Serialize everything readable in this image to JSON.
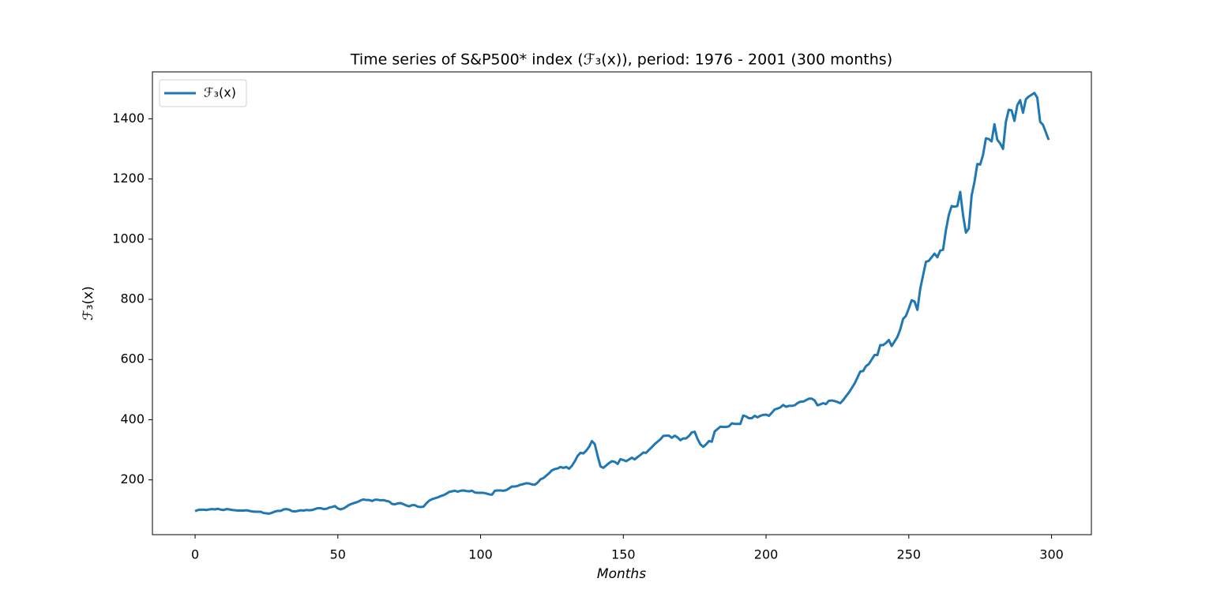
{
  "chart_data": {
    "type": "line",
    "title": "Time series of S&P500* index (ℱ₃(x)), period: 1976 - 2001 (300 months)",
    "xlabel": "Months",
    "ylabel": "ℱ₃(x)",
    "legend": "upper left",
    "xlim": [
      -14.95,
      313.95
    ],
    "xticks": [
      0,
      50,
      100,
      150,
      200,
      250,
      300
    ],
    "ylim": [
      18,
      1556
    ],
    "yticks": [
      200,
      400,
      600,
      800,
      1000,
      1200,
      1400
    ],
    "x": [
      0,
      1,
      2,
      3,
      4,
      5,
      6,
      7,
      8,
      9,
      10,
      11,
      12,
      13,
      14,
      15,
      16,
      17,
      18,
      19,
      20,
      21,
      22,
      23,
      24,
      25,
      26,
      27,
      28,
      29,
      30,
      31,
      32,
      33,
      34,
      35,
      36,
      37,
      38,
      39,
      40,
      41,
      42,
      43,
      44,
      45,
      46,
      47,
      48,
      49,
      50,
      51,
      52,
      53,
      54,
      55,
      56,
      57,
      58,
      59,
      60,
      61,
      62,
      63,
      64,
      65,
      66,
      67,
      68,
      69,
      70,
      71,
      72,
      73,
      74,
      75,
      76,
      77,
      78,
      79,
      80,
      81,
      82,
      83,
      84,
      85,
      86,
      87,
      88,
      89,
      90,
      91,
      92,
      93,
      94,
      95,
      96,
      97,
      98,
      99,
      100,
      101,
      102,
      103,
      104,
      105,
      106,
      107,
      108,
      109,
      110,
      111,
      112,
      113,
      114,
      115,
      116,
      117,
      118,
      119,
      120,
      121,
      122,
      123,
      124,
      125,
      126,
      127,
      128,
      129,
      130,
      131,
      132,
      133,
      134,
      135,
      136,
      137,
      138,
      139,
      140,
      141,
      142,
      143,
      144,
      145,
      146,
      147,
      148,
      149,
      150,
      151,
      152,
      153,
      154,
      155,
      156,
      157,
      158,
      159,
      160,
      161,
      162,
      163,
      164,
      165,
      166,
      167,
      168,
      169,
      170,
      171,
      172,
      173,
      174,
      175,
      176,
      177,
      178,
      179,
      180,
      181,
      182,
      183,
      184,
      185,
      186,
      187,
      188,
      189,
      190,
      191,
      192,
      193,
      194,
      195,
      196,
      197,
      198,
      199,
      200,
      201,
      202,
      203,
      204,
      205,
      206,
      207,
      208,
      209,
      210,
      211,
      212,
      213,
      214,
      215,
      216,
      217,
      218,
      219,
      220,
      221,
      222,
      223,
      224,
      225,
      226,
      227,
      228,
      229,
      230,
      231,
      232,
      233,
      234,
      235,
      236,
      237,
      238,
      239,
      240,
      241,
      242,
      243,
      244,
      245,
      246,
      247,
      248,
      249,
      250,
      251,
      252,
      253,
      254,
      255,
      256,
      257,
      258,
      259,
      260,
      261,
      262,
      263,
      264,
      265,
      266,
      267,
      268,
      269,
      270,
      271,
      272,
      273,
      274,
      275,
      276,
      277,
      278,
      279,
      280,
      281,
      282,
      283,
      284,
      285,
      286,
      287,
      288,
      289,
      290,
      291,
      292,
      293,
      294,
      295,
      296,
      297,
      298,
      299
    ],
    "series": [
      {
        "name": "ℱ₃(x)",
        "color": "#1f77b4",
        "values": [
          96,
          100,
          101,
          101,
          100,
          102,
          103,
          102,
          104,
          101,
          100,
          103,
          102,
          100,
          99,
          98,
          98,
          98,
          99,
          97,
          95,
          94,
          94,
          94,
          90,
          89,
          88,
          91,
          95,
          97,
          97,
          102,
          103,
          101,
          96,
          95,
          97,
          99,
          98,
          100,
          99,
          100,
          103,
          106,
          106,
          103,
          104,
          108,
          110,
          113,
          105,
          102,
          105,
          111,
          117,
          121,
          124,
          127,
          132,
          135,
          133,
          133,
          130,
          134,
          134,
          132,
          133,
          130,
          128,
          120,
          119,
          122,
          123,
          119,
          115,
          112,
          116,
          116,
          111,
          110,
          111,
          122,
          131,
          136,
          139,
          142,
          146,
          149,
          154,
          160,
          162,
          164,
          161,
          164,
          165,
          163,
          162,
          164,
          158,
          157,
          157,
          157,
          155,
          152,
          151,
          164,
          165,
          165,
          164,
          166,
          172,
          178,
          178,
          180,
          184,
          186,
          189,
          188,
          185,
          184,
          191,
          202,
          206,
          214,
          222,
          232,
          236,
          238,
          243,
          240,
          243,
          237,
          247,
          262,
          280,
          290,
          288,
          297,
          310,
          329,
          319,
          280,
          245,
          240,
          248,
          256,
          262,
          260,
          253,
          269,
          266,
          262,
          268,
          274,
          268,
          276,
          283,
          291,
          290,
          300,
          309,
          319,
          327,
          335,
          346,
          347,
          347,
          340,
          347,
          341,
          332,
          338,
          338,
          346,
          358,
          360,
          336,
          318,
          310,
          318,
          329,
          327,
          361,
          369,
          377,
          376,
          376,
          378,
          388,
          386,
          386,
          386,
          414,
          411,
          405,
          405,
          413,
          408,
          413,
          416,
          417,
          413,
          423,
          434,
          437,
          441,
          449,
          443,
          446,
          446,
          448,
          455,
          460,
          460,
          465,
          470,
          470,
          464,
          448,
          451,
          455,
          452,
          463,
          464,
          462,
          459,
          455,
          465,
          478,
          490,
          505,
          520,
          540,
          560,
          562,
          578,
          585,
          600,
          615,
          615,
          648,
          648,
          655,
          665,
          645,
          660,
          675,
          700,
          735,
          745,
          770,
          797,
          793,
          765,
          835,
          880,
          925,
          928,
          940,
          952,
          940,
          962,
          965,
          1030,
          1080,
          1110,
          1108,
          1110,
          1157,
          1080,
          1022,
          1035,
          1145,
          1190,
          1250,
          1248,
          1280,
          1335,
          1333,
          1325,
          1382,
          1330,
          1318,
          1300,
          1390,
          1430,
          1428,
          1393,
          1445,
          1462,
          1420,
          1465,
          1474,
          1480,
          1486,
          1470,
          1390,
          1380,
          1355,
          1330
        ]
      }
    ]
  }
}
